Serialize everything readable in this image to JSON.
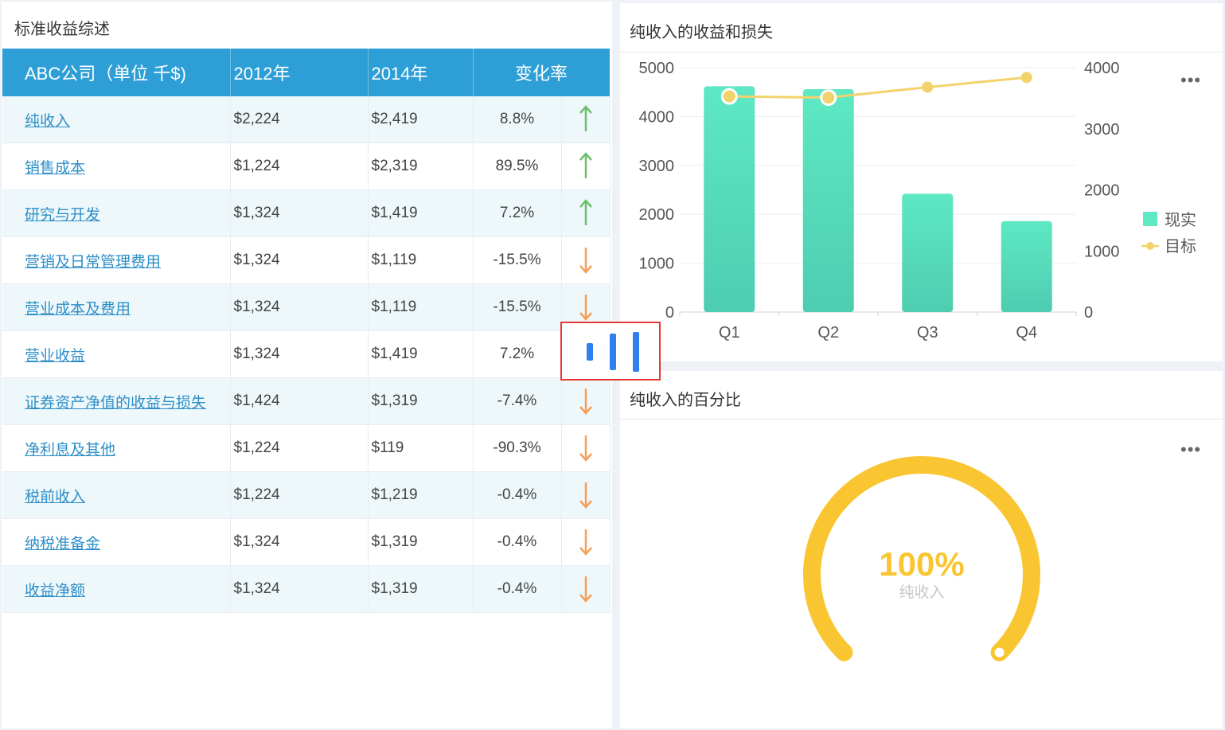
{
  "left_panel": {
    "title": "标准收益综述",
    "table": {
      "headers": [
        "ABC公司（单位 千$)",
        "2012年",
        "2014年",
        "变化率"
      ],
      "rows": [
        {
          "name": "纯收入",
          "y2012": "$2,224",
          "y2014": "$2,419",
          "rate": "8.8%",
          "trend": "up"
        },
        {
          "name": "销售成本",
          "y2012": "$1,224",
          "y2014": "$2,319",
          "rate": "89.5%",
          "trend": "up"
        },
        {
          "name": "研究与开发",
          "y2012": "$1,324",
          "y2014": "$1,419",
          "rate": "7.2%",
          "trend": "up"
        },
        {
          "name": "营销及日常管理费用",
          "y2012": "$1,324",
          "y2014": "$1,119",
          "rate": "-15.5%",
          "trend": "down"
        },
        {
          "name": "营业成本及费用",
          "y2012": "$1,324",
          "y2014": "$1,119",
          "rate": "-15.5%",
          "trend": "down"
        },
        {
          "name": "营业收益",
          "y2012": "$1,324",
          "y2014": "$1,419",
          "rate": "7.2%",
          "trend": "up"
        },
        {
          "name": "证券资产净值的收益与损失",
          "y2012": "$1,424",
          "y2014": "$1,319",
          "rate": "-7.4%",
          "trend": "down"
        },
        {
          "name": "净利息及其他",
          "y2012": "$1,224",
          "y2014": "$119",
          "rate": "-90.3%",
          "trend": "down"
        },
        {
          "name": "税前收入",
          "y2012": "$1,224",
          "y2014": "$1,219",
          "rate": "-0.4%",
          "trend": "down"
        },
        {
          "name": "纳税准备金",
          "y2012": "$1,324",
          "y2014": "$1,319",
          "rate": "-0.4%",
          "trend": "down"
        },
        {
          "name": "收益净额",
          "y2012": "$1,324",
          "y2014": "$1,319",
          "rate": "-0.4%",
          "trend": "down"
        }
      ]
    }
  },
  "bar_panel": {
    "title": "纯收入的收益和损失",
    "more_label": "•••"
  },
  "gauge_panel": {
    "title": "纯收入的百分比",
    "more_label": "•••",
    "value_label": "100%",
    "sub_label": "纯收入",
    "value": 1.0
  },
  "colors": {
    "header_blue": "#2e9fd6",
    "up_arrow": "#6cc06c",
    "down_arrow": "#f5a05a",
    "bar_top": "#5ee8c4",
    "bar_bottom": "#4ecdb0",
    "line": "#f2d36b",
    "gauge": "#f9c531",
    "highlight_border": "#e53935",
    "highlight_icon": "#2f80ed"
  },
  "chart_data": {
    "type": "bar",
    "categories": [
      "Q1",
      "Q2",
      "Q3",
      "Q4"
    ],
    "series": [
      {
        "name": "现实",
        "type": "bar",
        "axis": "left",
        "values": [
          4620,
          4560,
          2420,
          1860
        ]
      },
      {
        "name": "目标",
        "type": "line",
        "axis": "right",
        "values": [
          3530,
          3510,
          3680,
          3840
        ]
      }
    ],
    "y_left": {
      "ticks": [
        0,
        1000,
        2000,
        3000,
        4000,
        5000
      ],
      "ylim": [
        0,
        5000
      ]
    },
    "y_right": {
      "ticks": [
        0,
        1000,
        2000,
        3000,
        4000
      ],
      "ylim": [
        0,
        4000
      ]
    },
    "legend": {
      "position": "right",
      "entries": [
        "现实",
        "目标"
      ]
    },
    "grid": true
  }
}
